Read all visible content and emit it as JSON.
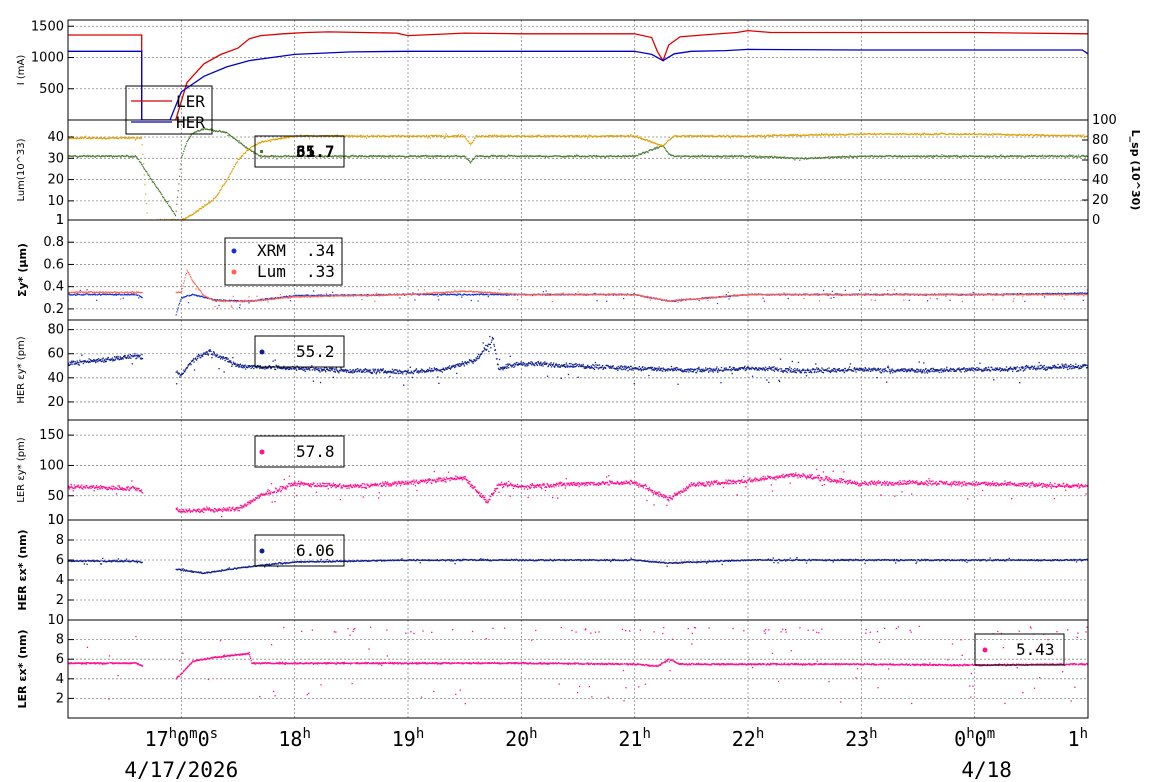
{
  "x_axis": {
    "start": "16:00",
    "end": "1:00",
    "tick_labels": [
      {
        "hour": 17,
        "base": "17",
        "sup": "h",
        "extra": "0",
        "sup2": "m",
        "extra2": "0",
        "sup3": "s"
      },
      {
        "hour": 18,
        "base": "18",
        "sup": "h"
      },
      {
        "hour": 19,
        "base": "19",
        "sup": "h"
      },
      {
        "hour": 20,
        "base": "20",
        "sup": "h"
      },
      {
        "hour": 21,
        "base": "21",
        "sup": "h"
      },
      {
        "hour": 22,
        "base": "22",
        "sup": "h"
      },
      {
        "hour": 23,
        "base": "23",
        "sup": "h"
      },
      {
        "hour": 24,
        "base": "0",
        "sup": "h",
        "extra": "0",
        "sup2": "m"
      },
      {
        "hour": 25,
        "base": "1",
        "sup": "h"
      }
    ],
    "date_left": "4/17/2026",
    "date_right": "4/18"
  },
  "chart_data": [
    {
      "type": "line",
      "ylabel": "I (mA)",
      "ylim": [
        0,
        1600
      ],
      "yticks": [
        500,
        1000,
        1500
      ],
      "legend": {
        "entries": [
          {
            "name": "LER",
            "color": "#dd0000"
          },
          {
            "name": "HER",
            "color": "#0000cc"
          }
        ]
      },
      "series": [
        {
          "name": "LER",
          "color": "#dd0000",
          "x": [
            16.0,
            16.65,
            16.65,
            16.95,
            17.05,
            17.2,
            17.35,
            17.5,
            17.6,
            17.7,
            17.9,
            18.1,
            18.3,
            18.6,
            18.9,
            19.0,
            19.5,
            20.0,
            21.0,
            21.15,
            21.2,
            21.25,
            21.3,
            21.4,
            21.6,
            21.9,
            22.0,
            22.2,
            23.0,
            24.0,
            25.0
          ],
          "y": [
            1360,
            1360,
            0,
            0,
            600,
            900,
            1050,
            1150,
            1300,
            1350,
            1380,
            1400,
            1410,
            1400,
            1390,
            1350,
            1390,
            1380,
            1380,
            1320,
            1100,
            950,
            1200,
            1330,
            1360,
            1400,
            1430,
            1400,
            1400,
            1400,
            1380
          ]
        },
        {
          "name": "HER",
          "color": "#0000cc",
          "x": [
            16.0,
            16.65,
            16.65,
            16.9,
            17.0,
            17.2,
            17.4,
            17.6,
            17.8,
            18.0,
            18.5,
            19.0,
            20.0,
            21.0,
            21.15,
            21.25,
            21.35,
            21.5,
            21.8,
            22.0,
            23.0,
            24.0,
            24.95,
            25.0
          ],
          "y": [
            1100,
            1100,
            0,
            0,
            450,
            700,
            850,
            950,
            1000,
            1050,
            1090,
            1100,
            1100,
            1100,
            1050,
            950,
            1060,
            1100,
            1110,
            1130,
            1120,
            1120,
            1120,
            1060
          ]
        }
      ]
    },
    {
      "type": "scatter",
      "ylabel": "Lum(10^33)",
      "ylabel2": "L_sp (10^30)",
      "ylim": [
        1,
        48
      ],
      "yticks": [
        1,
        10,
        20,
        30,
        40
      ],
      "ylim2": [
        0,
        100
      ],
      "yticks2": [
        0,
        20,
        40,
        60,
        80,
        100
      ],
      "readout": [
        "65",
        "31.7"
      ],
      "series": [
        {
          "name": "Lum",
          "color": "#4a7a30",
          "axis": "left",
          "x": [
            16.0,
            16.6,
            16.95,
            17.0,
            17.05,
            17.1,
            17.2,
            17.3,
            17.4,
            17.5,
            17.6,
            17.7,
            18.0,
            19.0,
            19.5,
            19.55,
            19.6,
            20.0,
            21.0,
            21.25,
            21.3,
            21.35,
            22.0,
            22.5,
            23.0,
            24.0,
            25.0
          ],
          "y": [
            31,
            31,
            3,
            30,
            38,
            42,
            44,
            43,
            42,
            38,
            34,
            31,
            31,
            31,
            31,
            28,
            31,
            31,
            31,
            36,
            32,
            31,
            31,
            30,
            31,
            31,
            31
          ]
        },
        {
          "name": "L_sp",
          "color": "#e0a000",
          "axis": "right",
          "x": [
            16.0,
            16.65,
            16.7,
            17.0,
            17.1,
            17.2,
            17.3,
            17.4,
            17.5,
            17.6,
            17.7,
            18.0,
            19.0,
            19.5,
            19.55,
            19.6,
            20.0,
            21.0,
            21.25,
            21.3,
            21.35,
            22.0,
            23.0,
            24.0,
            25.0
          ],
          "y": [
            82,
            82,
            0,
            0,
            6,
            14,
            22,
            40,
            60,
            72,
            78,
            84,
            84,
            84,
            75,
            84,
            84,
            84,
            74,
            80,
            84,
            84,
            86,
            86,
            84
          ]
        }
      ]
    },
    {
      "type": "scatter",
      "ylabel": "Σy* (μm)",
      "ylim": [
        0.1,
        1.0
      ],
      "yticks": [
        0.2,
        0.4,
        0.6,
        0.8,
        1
      ],
      "legend": {
        "entries": [
          {
            "name": "XRM",
            "value": ".34",
            "color": "#1030e0"
          },
          {
            "name": "Lum",
            "value": ".33",
            "color": "#ff6050"
          }
        ]
      },
      "series": [
        {
          "name": "XRM",
          "color": "#1030e0",
          "x": [
            16.0,
            16.6,
            16.95,
            17.0,
            17.1,
            17.3,
            17.6,
            18.0,
            19.0,
            20.0,
            21.0,
            21.3,
            22.0,
            23.0,
            24.0,
            25.0
          ],
          "y": [
            0.33,
            0.33,
            0.14,
            0.3,
            0.33,
            0.28,
            0.27,
            0.32,
            0.33,
            0.33,
            0.33,
            0.27,
            0.33,
            0.33,
            0.33,
            0.34
          ]
        },
        {
          "name": "Lum",
          "color": "#ff6050",
          "x": [
            17.0,
            17.05,
            17.1,
            17.2,
            17.3,
            17.6,
            18.0,
            19.0,
            19.5,
            20.0,
            21.0,
            21.3,
            22.0,
            23.0,
            24.0,
            25.0
          ],
          "y": [
            0.35,
            0.55,
            0.45,
            0.32,
            0.27,
            0.27,
            0.31,
            0.33,
            0.36,
            0.33,
            0.33,
            0.27,
            0.33,
            0.33,
            0.33,
            0.33
          ]
        }
      ]
    },
    {
      "type": "scatter",
      "ylabel": "HER εy* (pm)",
      "ylim": [
        5,
        88
      ],
      "yticks": [
        20,
        40,
        60,
        80
      ],
      "readout": "55.2",
      "series": [
        {
          "name": "HER εy*",
          "color": "#102090",
          "x": [
            16.0,
            16.3,
            16.6,
            17.0,
            17.1,
            17.25,
            17.5,
            18.0,
            18.5,
            19.0,
            19.3,
            19.6,
            19.75,
            19.8,
            20.0,
            20.5,
            21.0,
            21.5,
            22.0,
            22.5,
            23.0,
            23.5,
            24.0,
            24.5,
            25.0
          ],
          "y": [
            52,
            55,
            58,
            42,
            55,
            62,
            50,
            48,
            46,
            45,
            47,
            55,
            72,
            48,
            52,
            50,
            48,
            46,
            48,
            46,
            47,
            46,
            47,
            48,
            50
          ]
        }
      ]
    },
    {
      "type": "scatter",
      "ylabel": "LER εy* (pm)",
      "ylim": [
        10,
        175
      ],
      "yticks": [
        10,
        50,
        100,
        150
      ],
      "readout": "57.8",
      "series": [
        {
          "name": "LER εy*",
          "color": "#ff1090",
          "x": [
            16.0,
            16.6,
            17.0,
            17.5,
            17.7,
            18.0,
            18.5,
            19.0,
            19.5,
            19.7,
            19.8,
            20.0,
            20.5,
            21.0,
            21.3,
            21.5,
            22.0,
            22.4,
            23.0,
            23.5,
            24.0,
            24.5,
            25.0
          ],
          "y": [
            65,
            62,
            25,
            28,
            50,
            70,
            65,
            72,
            80,
            40,
            68,
            65,
            70,
            72,
            45,
            68,
            75,
            85,
            70,
            72,
            70,
            68,
            66
          ]
        }
      ]
    },
    {
      "type": "scatter",
      "ylabel": "HER εx* (nm)",
      "ylim": [
        0,
        10
      ],
      "yticks": [
        2,
        4,
        6,
        8,
        10
      ],
      "readout": "6.06",
      "series": [
        {
          "name": "HER εx*",
          "color": "#102090",
          "x": [
            16.0,
            16.6,
            17.0,
            17.2,
            17.5,
            17.8,
            18.0,
            19.0,
            20.0,
            21.0,
            21.3,
            22.0,
            23.0,
            24.0,
            25.0
          ],
          "y": [
            5.9,
            5.9,
            5.0,
            4.7,
            5.2,
            5.6,
            5.8,
            6.0,
            6.0,
            6.0,
            5.7,
            6.0,
            6.0,
            6.0,
            6.0
          ]
        }
      ]
    },
    {
      "type": "scatter",
      "ylabel": "LER εx* (nm)",
      "ylim": [
        0,
        10
      ],
      "yticks": [
        2,
        4,
        6,
        8,
        10
      ],
      "readout": "5.43",
      "series": [
        {
          "name": "LER εx*",
          "color": "#ff1090",
          "x": [
            16.0,
            16.6,
            16.95,
            17.0,
            17.1,
            17.3,
            17.6,
            17.62,
            18.0,
            19.0,
            20.0,
            21.0,
            21.2,
            21.3,
            21.4,
            22.0,
            23.0,
            24.0,
            25.0
          ],
          "y": [
            5.6,
            5.6,
            4.0,
            4.5,
            5.8,
            6.2,
            6.6,
            5.6,
            5.6,
            5.6,
            5.6,
            5.5,
            5.3,
            6.0,
            5.5,
            5.5,
            5.5,
            5.4,
            5.5
          ]
        }
      ]
    }
  ]
}
